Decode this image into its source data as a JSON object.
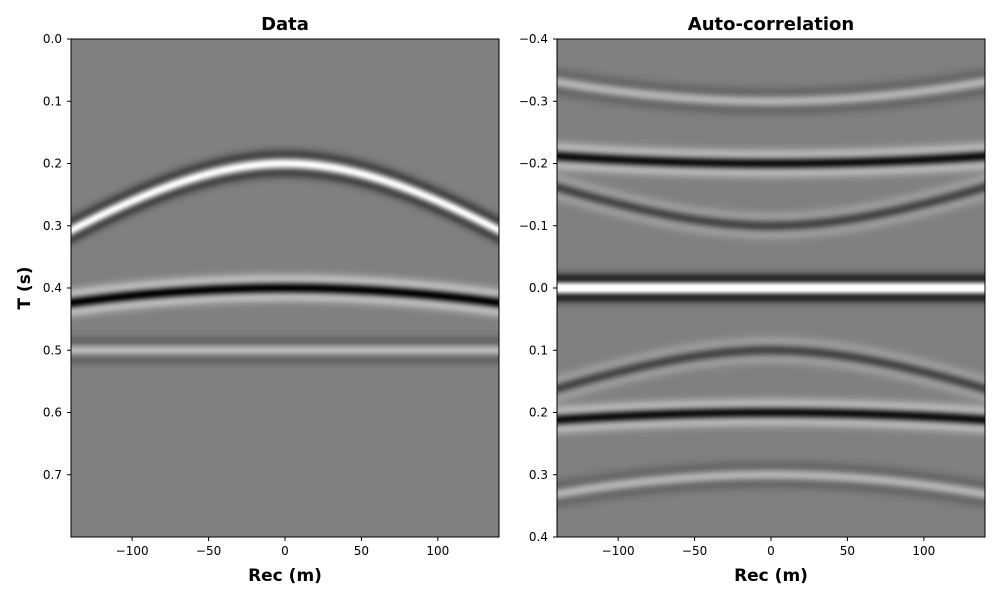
{
  "chart_data": [
    {
      "type": "heatmap",
      "title": "Data",
      "xlabel": "Rec (m)",
      "ylabel": "T (s)",
      "colormap": "gray",
      "background_value": 0,
      "xlim": [
        -140,
        140
      ],
      "ylim": [
        0.0,
        0.8
      ],
      "y_inverted": true,
      "xticks": [
        -100,
        -50,
        0,
        50,
        100
      ],
      "xtick_labels": [
        "−100",
        "−50",
        "0",
        "50",
        "100"
      ],
      "yticks": [
        0.0,
        0.1,
        0.2,
        0.3,
        0.4,
        0.5,
        0.6,
        0.7
      ],
      "ytick_labels": [
        "0.0",
        "0.1",
        "0.2",
        "0.3",
        "0.4",
        "0.5",
        "0.6",
        "0.7"
      ],
      "events": [
        {
          "kind": "hyperbola",
          "t0": 0.2,
          "velocity": 600,
          "polarity": 1,
          "amplitude": 1.0
        },
        {
          "kind": "hyperbola",
          "t0": 0.4,
          "velocity": 1000,
          "polarity": -1,
          "amplitude": 1.0
        },
        {
          "kind": "flat",
          "t0": 0.5,
          "polarity": 1,
          "amplitude": 0.45
        }
      ]
    },
    {
      "type": "heatmap",
      "title": "Auto-correlation",
      "xlabel": "Rec (m)",
      "ylabel": "",
      "colormap": "gray",
      "background_value": 0,
      "xlim": [
        -140,
        140
      ],
      "ylim": [
        -0.4,
        0.4
      ],
      "y_inverted": true,
      "xticks": [
        -100,
        -50,
        0,
        50,
        100
      ],
      "xtick_labels": [
        "−100",
        "−50",
        "0",
        "50",
        "100"
      ],
      "yticks": [
        -0.4,
        -0.3,
        -0.2,
        -0.1,
        0.0,
        0.1,
        0.2,
        0.3,
        0.4
      ],
      "ytick_labels": [
        "−0.4",
        "−0.3",
        "−0.2",
        "−0.1",
        "0.0",
        "0.1",
        "0.2",
        "0.3",
        "0.4"
      ],
      "events": [
        {
          "kind": "flat",
          "t0": 0.0,
          "polarity": 1,
          "amplitude": 1.6
        },
        {
          "kind": "lag-hyperbola",
          "t0": 0.2,
          "velocity": 2000,
          "polarity": -1,
          "amplitude": 0.9
        },
        {
          "kind": "lag-hyperbola",
          "t0": -0.2,
          "velocity": 2000,
          "polarity": -1,
          "amplitude": 0.9
        },
        {
          "kind": "lag-hyperbola",
          "t0": 0.3,
          "velocity": 1000,
          "polarity": 1,
          "amplitude": 0.4
        },
        {
          "kind": "lag-hyperbola",
          "t0": -0.3,
          "velocity": 1000,
          "polarity": 1,
          "amplitude": 0.4
        },
        {
          "kind": "lag-hyperbola",
          "t0": 0.1,
          "velocity": 1100,
          "polarity": -1,
          "amplitude": 0.45
        },
        {
          "kind": "lag-hyperbola",
          "t0": -0.1,
          "velocity": 1100,
          "polarity": -1,
          "amplitude": 0.45
        }
      ]
    }
  ]
}
